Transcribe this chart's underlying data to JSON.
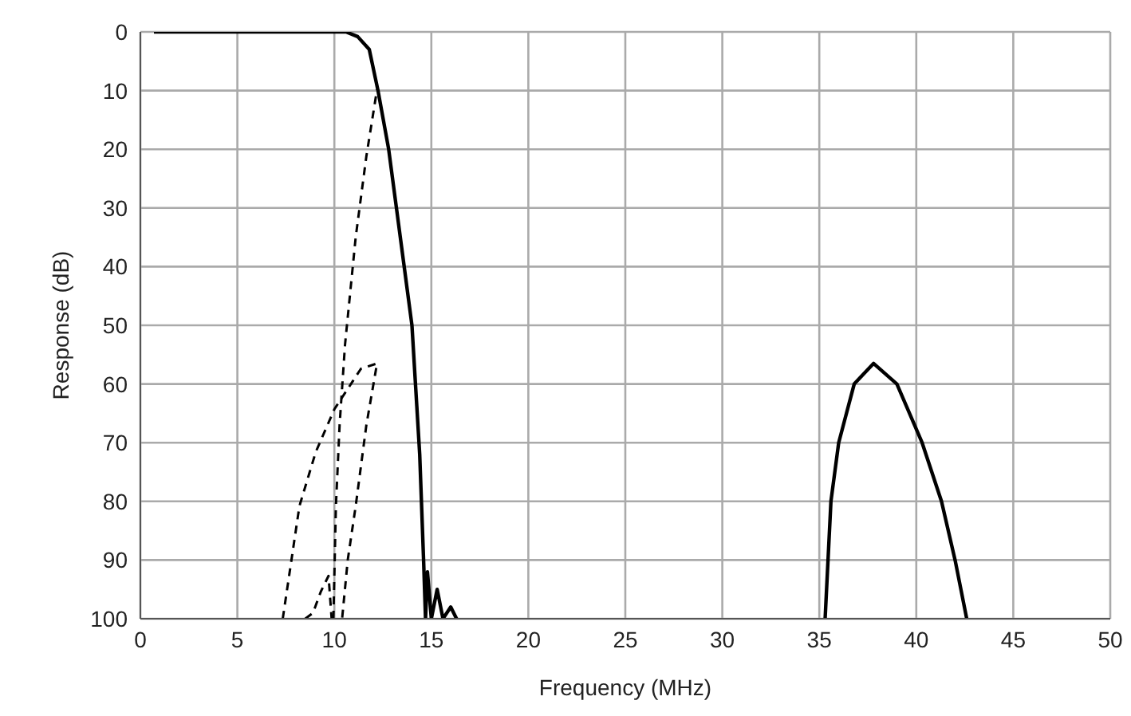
{
  "chart_data": {
    "type": "line",
    "xlabel": "Frequency (MHz)",
    "ylabel": "Response (dB)",
    "xlim": [
      0,
      50
    ],
    "xticks": [
      0,
      5,
      10,
      15,
      20,
      25,
      30,
      35,
      40,
      45,
      50
    ],
    "ylim": [
      100,
      0
    ],
    "yticks": [
      0,
      10,
      20,
      30,
      40,
      50,
      60,
      70,
      80,
      90,
      100
    ],
    "grid": true,
    "marker": "none",
    "series": [
      {
        "color": "#000000",
        "line_style": "solid",
        "x": [
          0.7,
          10.6,
          11.2,
          11.8,
          12.25,
          12.8,
          13.2,
          13.6,
          14.0,
          14.4,
          14.6,
          14.7,
          14.8,
          15.0,
          15.3,
          15.6,
          16.0,
          16.3
        ],
        "values": [
          0,
          0,
          0.8,
          3,
          10,
          20,
          30,
          40,
          50,
          72,
          90,
          100,
          92,
          100,
          95,
          100,
          98,
          100
        ]
      },
      {
        "color": "#000000",
        "line_style": "solid",
        "x": [
          35.3,
          35.6,
          36.0,
          36.8,
          37.8,
          39.0,
          40.3,
          41.3,
          42.0,
          42.6
        ],
        "values": [
          100,
          80,
          70,
          60,
          56.5,
          60,
          70,
          80,
          90,
          100
        ]
      },
      {
        "color": "#000000",
        "line_style": "dashed",
        "x": [
          9.95,
          10.08,
          10.27,
          10.55,
          11.1,
          11.65,
          12.2
        ],
        "values": [
          100,
          80.8,
          67,
          53.3,
          35,
          21.2,
          9.8
        ]
      },
      {
        "color": "#000000",
        "line_style": "dashed",
        "x": [
          7.34,
          8.2,
          9.04,
          10.0,
          11.37,
          12.2,
          11.65,
          11.1,
          10.69,
          10.4
        ],
        "values": [
          100,
          80.8,
          71.6,
          64.3,
          57.4,
          56.5,
          67,
          80.8,
          90,
          100
        ]
      },
      {
        "color": "#000000",
        "line_style": "dashed",
        "x": [
          8.5,
          8.9,
          9.3,
          9.7,
          9.86
        ],
        "values": [
          100,
          99,
          95.4,
          92.7,
          100
        ]
      }
    ]
  }
}
